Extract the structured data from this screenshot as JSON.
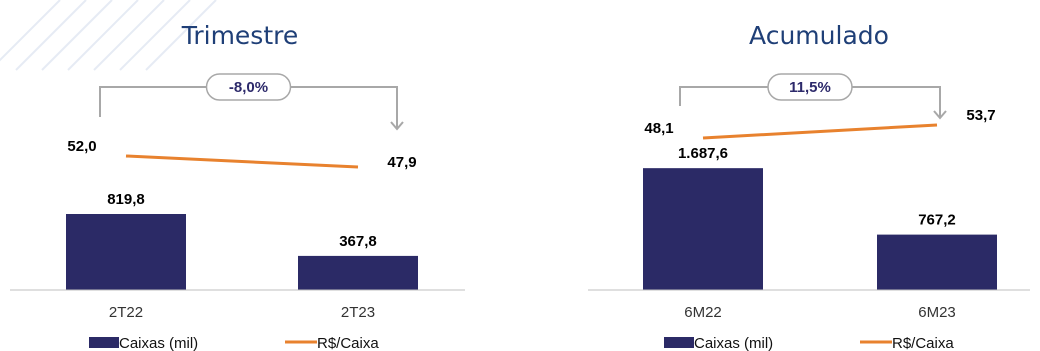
{
  "legend": {
    "bars_label": "Caixas (mil)",
    "line_label": "R$/Caixa"
  },
  "colors": {
    "bar": "#2b2a66",
    "line": "#e8822e",
    "bracket": "#a8a8a8",
    "title": "#1f3f77",
    "badge_text": "#2d2a6b",
    "decor": "#e6ebf4"
  },
  "chart_data": [
    {
      "type": "bar",
      "title": "Trimestre",
      "categories": [
        "2T22",
        "2T23"
      ],
      "bar_values": [
        819.8,
        367.8
      ],
      "bar_labels": [
        "819,8",
        "367,8"
      ],
      "line_values": [
        52.0,
        47.9
      ],
      "line_labels": [
        "52,0",
        "47,9"
      ],
      "change_label": "-8,0%",
      "ylim": [
        0,
        2000
      ]
    },
    {
      "type": "bar",
      "title": "Acumulado",
      "categories": [
        "6M22",
        "6M23"
      ],
      "bar_values": [
        1687.6,
        767.2
      ],
      "bar_labels": [
        "1.687,6",
        "767,2"
      ],
      "line_values": [
        48.1,
        53.7
      ],
      "line_labels": [
        "48,1",
        "53,7"
      ],
      "change_label": "11,5%",
      "ylim": [
        0,
        2000
      ]
    }
  ]
}
